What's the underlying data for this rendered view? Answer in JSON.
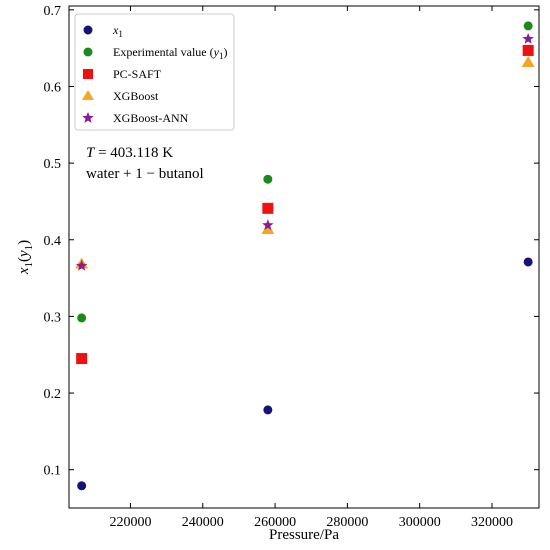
{
  "chart_data": {
    "type": "scatter",
    "xlabel": "Pressure/Pa",
    "ylabel": "x1(y1)",
    "xlim": [
      203000,
      333000
    ],
    "ylim": [
      0.05,
      0.705
    ],
    "xticks": [
      220000,
      240000,
      260000,
      280000,
      300000,
      320000
    ],
    "yticks": [
      0.1,
      0.2,
      0.3,
      0.4,
      0.5,
      0.6,
      0.7
    ],
    "grid": false,
    "legend_position": "top-left",
    "annotations": [
      "T = 403.118 K",
      "water + 1 − butanol"
    ],
    "series": [
      {
        "name": "x1",
        "marker": "circle",
        "color": "#14147a",
        "x": [
          206500,
          258000,
          330000
        ],
        "y": [
          0.079,
          0.178,
          0.371
        ]
      },
      {
        "name": "Experimental value (y1)",
        "marker": "circle",
        "color": "#1a8a1a",
        "x": [
          206500,
          258000,
          330000
        ],
        "y": [
          0.298,
          0.479,
          0.679
        ]
      },
      {
        "name": "PC-SAFT",
        "marker": "square",
        "color": "#ee1111",
        "x": [
          206500,
          258000,
          330000
        ],
        "y": [
          0.245,
          0.441,
          0.647
        ]
      },
      {
        "name": "XGBoost",
        "marker": "triangle",
        "color": "#f5a623",
        "x": [
          206500,
          258000,
          330000
        ],
        "y": [
          0.369,
          0.414,
          0.632
        ]
      },
      {
        "name": "XGBoost-ANN",
        "marker": "star",
        "color": "#8b1a9a",
        "x": [
          206500,
          258000,
          330000
        ],
        "y": [
          0.366,
          0.419,
          0.662
        ]
      }
    ]
  }
}
